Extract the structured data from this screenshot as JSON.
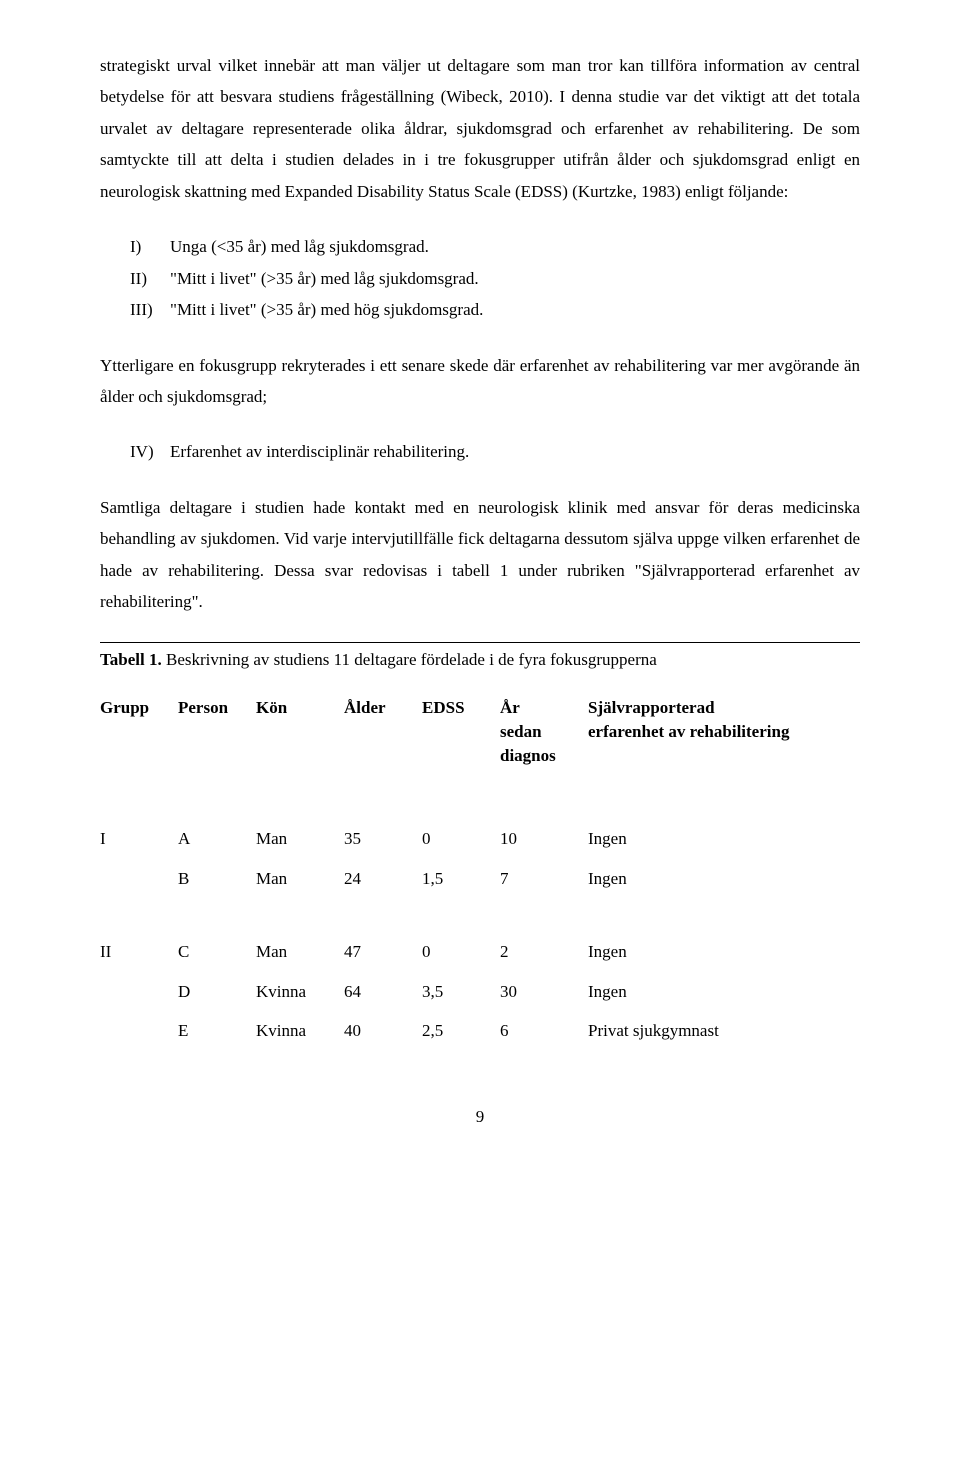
{
  "paragraphs": {
    "p1": "strategiskt urval vilket innebär att man väljer ut deltagare som man tror kan tillföra information av central betydelse för att besvara studiens frågeställning (Wibeck, 2010). I denna studie var det viktigt att det totala urvalet av deltagare representerade olika åldrar, sjukdomsgrad och erfarenhet av rehabilitering. De som samtyckte till att delta i studien delades in i tre fokusgrupper utifrån ålder och sjukdomsgrad enligt en neurologisk skattning med Expanded Disability Status Scale (EDSS) (Kurtzke, 1983) enligt följande:",
    "p2": "Ytterligare en fokusgrupp rekryterades i ett senare skede där erfarenhet av rehabilitering var mer avgörande än ålder och sjukdomsgrad;",
    "p3": "Samtliga deltagare i studien hade kontakt med en neurologisk klinik med ansvar för deras medicinska behandling av sjukdomen. Vid varje intervjutillfälle fick deltagarna dessutom själva uppge vilken erfarenhet de hade av rehabilitering. Dessa svar redovisas i tabell 1 under rubriken \"Självrapporterad erfarenhet av rehabilitering\"."
  },
  "list1": [
    {
      "marker": "I)",
      "text": "Unga (<35 år) med låg sjukdomsgrad."
    },
    {
      "marker": "II)",
      "text": "\"Mitt i livet\" (>35 år) med låg sjukdomsgrad."
    },
    {
      "marker": "III)",
      "text": "\"Mitt i livet\" (>35 år) med hög sjukdomsgrad."
    }
  ],
  "list2": [
    {
      "marker": "IV)",
      "text": "Erfarenhet av interdisciplinär rehabilitering."
    }
  ],
  "table": {
    "title_bold": "Tabell 1.",
    "title_rest": " Beskrivning av studiens 11 deltagare fördelade i de fyra fokusgrupperna",
    "headers": {
      "grupp": "Grupp",
      "person": "Person",
      "kon": "Kön",
      "alder": "Ålder",
      "edss": "EDSS",
      "ar_line1": "År",
      "ar_line2": "sedan",
      "ar_line3": "diagnos",
      "sjalv_line1": "Självrapporterad",
      "sjalv_line2": "erfarenhet av rehabilitering"
    },
    "groups": [
      {
        "label": "I",
        "rows": [
          {
            "person": "A",
            "kon": "Man",
            "alder": "35",
            "edss": "0",
            "ar": "10",
            "sjalv": "Ingen"
          },
          {
            "person": "B",
            "kon": "Man",
            "alder": "24",
            "edss": "1,5",
            "ar": "7",
            "sjalv": "Ingen"
          }
        ]
      },
      {
        "label": "II",
        "rows": [
          {
            "person": "C",
            "kon": "Man",
            "alder": "47",
            "edss": "0",
            "ar": "2",
            "sjalv": "Ingen"
          },
          {
            "person": "D",
            "kon": "Kvinna",
            "alder": "64",
            "edss": "3,5",
            "ar": "30",
            "sjalv": "Ingen"
          },
          {
            "person": "E",
            "kon": "Kvinna",
            "alder": "40",
            "edss": "2,5",
            "ar": "6",
            "sjalv": "Privat sjukgymnast"
          }
        ]
      }
    ]
  },
  "pagenum": "9"
}
